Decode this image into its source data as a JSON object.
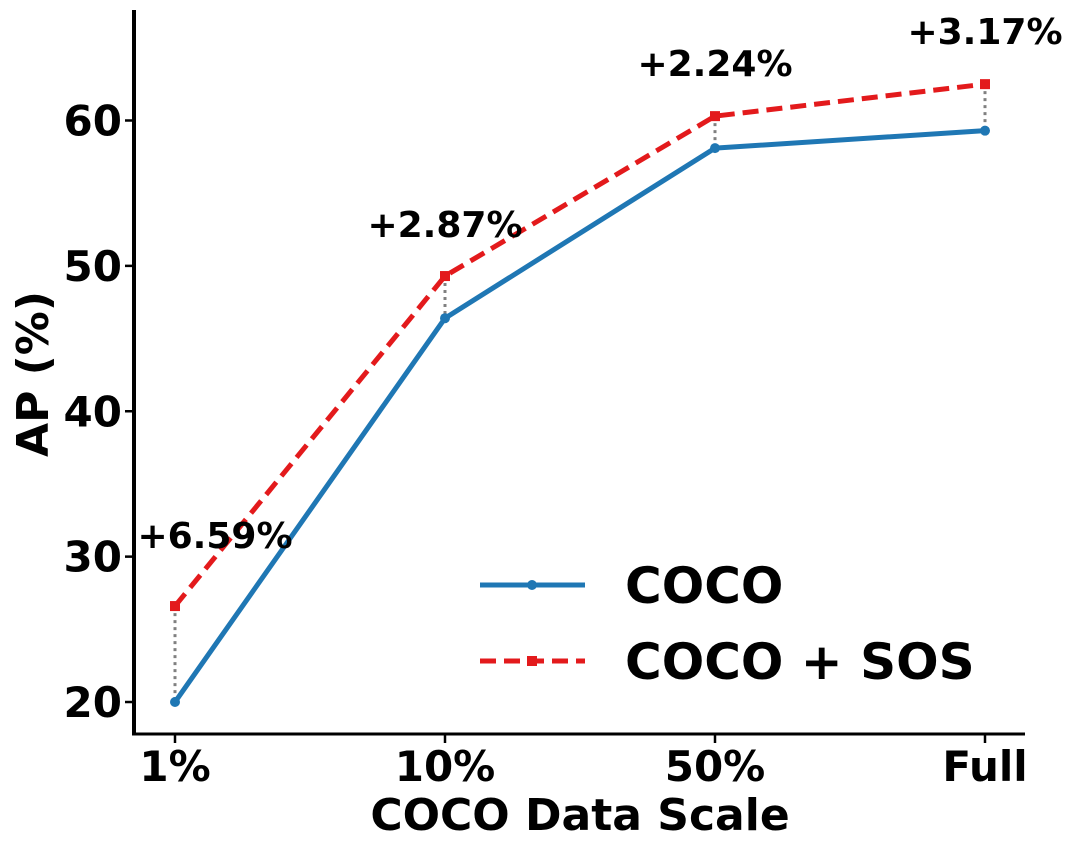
{
  "chart_data": {
    "type": "line",
    "categories": [
      "1%",
      "10%",
      "50%",
      "Full"
    ],
    "series": [
      {
        "name": "COCO",
        "values": [
          20.0,
          46.4,
          58.1,
          59.3
        ],
        "color": "#1f77b4",
        "style": "solid",
        "marker": "circle"
      },
      {
        "name": "COCO + SOS",
        "values": [
          26.6,
          49.3,
          60.3,
          62.5
        ],
        "color": "#e31a1c",
        "style": "dashed",
        "marker": "square"
      }
    ],
    "annotations": [
      "+6.59%",
      "+2.87%",
      "+2.24%",
      "+3.17%"
    ],
    "xlabel": "COCO Data Scale",
    "ylabel": "AP (%)",
    "yticks": [
      20,
      30,
      40,
      50,
      60
    ],
    "ylim": [
      17.8,
      67.6
    ],
    "legend_position": "lower-right",
    "grid": false
  }
}
